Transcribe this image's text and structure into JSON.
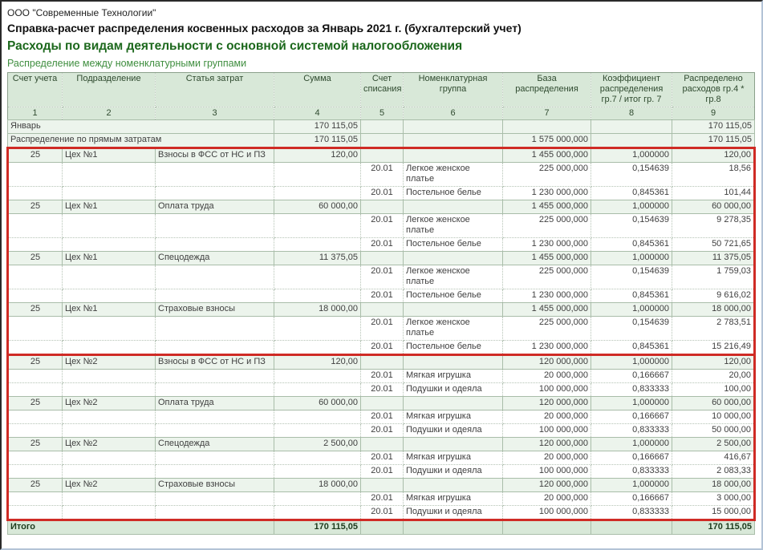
{
  "report": {
    "company": "ООО \"Современные Технологии\"",
    "title": "Справка-расчет распределения косвенных расходов за Январь 2021 г. (бухгалтерский учет)",
    "section_title": "Расходы по видам деятельности с основной системой налогообложения",
    "subsection_title": "Распределение между номенклатурными группами"
  },
  "colors": {
    "header_background": "#d8e8d8",
    "group_row_background": "#ecf4ec",
    "total_row_background": "#d8e8d8",
    "section_title_green": "#1c681c",
    "subsection_green": "#3f8e3f",
    "highlight_red": "#cf2b25"
  },
  "table": {
    "columns": [
      {
        "label": "Счет учета",
        "num": "1",
        "width": 68
      },
      {
        "label": "Подразделение",
        "num": "2",
        "width": 116
      },
      {
        "label": "Статья затрат",
        "num": "3",
        "width": 148
      },
      {
        "label": "Сумма",
        "num": "4",
        "width": 108
      },
      {
        "label": "Счет списания",
        "num": "5",
        "width": 53
      },
      {
        "label": "Номенклатурная группа",
        "num": "6",
        "width": 124
      },
      {
        "label": "База распределения",
        "num": "7",
        "width": 110
      },
      {
        "label": "Коэффициент распределения гр.7 / итог гр. 7",
        "num": "8",
        "width": 101
      },
      {
        "label": "Распределено расходов гр.4 * гр.8",
        "num": "9",
        "width": 103
      }
    ],
    "rows": [
      {
        "type": "month",
        "label": "Январь",
        "amount": "170 115,05",
        "base": "",
        "allocated": "170 115,05",
        "red": ""
      },
      {
        "type": "method",
        "label": "Распределение по прямым затратам",
        "amount": "170 115,05",
        "base": "1 575 000,000",
        "allocated": "170 115,05",
        "red": ""
      },
      {
        "type": "group",
        "account": "25",
        "department": "Цех №1",
        "cost_item": "Взносы в ФСС от НС и ПЗ",
        "amount": "120,00",
        "base": "1 455 000,000",
        "coefficient": "1,000000",
        "allocated": "120,00",
        "red": "first"
      },
      {
        "type": "detail",
        "write_off": "20.01",
        "group_name": "Легкое женское платье",
        "base": "225 000,000",
        "coefficient": "0,154639",
        "allocated": "18,56",
        "red": "mid"
      },
      {
        "type": "detail",
        "write_off": "20.01",
        "group_name": "Постельное белье",
        "base": "1 230 000,000",
        "coefficient": "0,845361",
        "allocated": "101,44",
        "red": "mid"
      },
      {
        "type": "group",
        "account": "25",
        "department": "Цех №1",
        "cost_item": "Оплата труда",
        "amount": "60 000,00",
        "base": "1 455 000,000",
        "coefficient": "1,000000",
        "allocated": "60 000,00",
        "red": "mid"
      },
      {
        "type": "detail",
        "write_off": "20.01",
        "group_name": "Легкое женское платье",
        "base": "225 000,000",
        "coefficient": "0,154639",
        "allocated": "9 278,35",
        "red": "mid"
      },
      {
        "type": "detail",
        "write_off": "20.01",
        "group_name": "Постельное белье",
        "base": "1 230 000,000",
        "coefficient": "0,845361",
        "allocated": "50 721,65",
        "red": "mid"
      },
      {
        "type": "group",
        "account": "25",
        "department": "Цех №1",
        "cost_item": "Спецодежда",
        "amount": "11 375,05",
        "base": "1 455 000,000",
        "coefficient": "1,000000",
        "allocated": "11 375,05",
        "red": "mid"
      },
      {
        "type": "detail",
        "write_off": "20.01",
        "group_name": "Легкое женское платье",
        "base": "225 000,000",
        "coefficient": "0,154639",
        "allocated": "1 759,03",
        "red": "mid"
      },
      {
        "type": "detail",
        "write_off": "20.01",
        "group_name": "Постельное белье",
        "base": "1 230 000,000",
        "coefficient": "0,845361",
        "allocated": "9 616,02",
        "red": "mid"
      },
      {
        "type": "group",
        "account": "25",
        "department": "Цех №1",
        "cost_item": "Страховые взносы",
        "amount": "18 000,00",
        "base": "1 455 000,000",
        "coefficient": "1,000000",
        "allocated": "18 000,00",
        "red": "mid"
      },
      {
        "type": "detail",
        "write_off": "20.01",
        "group_name": "Легкое женское платье",
        "base": "225 000,000",
        "coefficient": "0,154639",
        "allocated": "2 783,51",
        "red": "mid"
      },
      {
        "type": "detail",
        "write_off": "20.01",
        "group_name": "Постельное белье",
        "base": "1 230 000,000",
        "coefficient": "0,845361",
        "allocated": "15 216,49",
        "red": "last"
      },
      {
        "type": "group",
        "account": "25",
        "department": "Цех №2",
        "cost_item": "Взносы в ФСС от НС и ПЗ",
        "amount": "120,00",
        "base": "120 000,000",
        "coefficient": "1,000000",
        "allocated": "120,00",
        "red": "first"
      },
      {
        "type": "detail",
        "write_off": "20.01",
        "group_name": "Мягкая игрушка",
        "base": "20 000,000",
        "coefficient": "0,166667",
        "allocated": "20,00",
        "red": "mid"
      },
      {
        "type": "detail",
        "write_off": "20.01",
        "group_name": "Подушки и одеяла",
        "base": "100 000,000",
        "coefficient": "0,833333",
        "allocated": "100,00",
        "red": "mid"
      },
      {
        "type": "group",
        "account": "25",
        "department": "Цех №2",
        "cost_item": "Оплата труда",
        "amount": "60 000,00",
        "base": "120 000,000",
        "coefficient": "1,000000",
        "allocated": "60 000,00",
        "red": "mid"
      },
      {
        "type": "detail",
        "write_off": "20.01",
        "group_name": "Мягкая игрушка",
        "base": "20 000,000",
        "coefficient": "0,166667",
        "allocated": "10 000,00",
        "red": "mid"
      },
      {
        "type": "detail",
        "write_off": "20.01",
        "group_name": "Подушки и одеяла",
        "base": "100 000,000",
        "coefficient": "0,833333",
        "allocated": "50 000,00",
        "red": "mid"
      },
      {
        "type": "group",
        "account": "25",
        "department": "Цех №2",
        "cost_item": "Спецодежда",
        "amount": "2 500,00",
        "base": "120 000,000",
        "coefficient": "1,000000",
        "allocated": "2 500,00",
        "red": "mid"
      },
      {
        "type": "detail",
        "write_off": "20.01",
        "group_name": "Мягкая игрушка",
        "base": "20 000,000",
        "coefficient": "0,166667",
        "allocated": "416,67",
        "red": "mid"
      },
      {
        "type": "detail",
        "write_off": "20.01",
        "group_name": "Подушки и одеяла",
        "base": "100 000,000",
        "coefficient": "0,833333",
        "allocated": "2 083,33",
        "red": "mid"
      },
      {
        "type": "group",
        "account": "25",
        "department": "Цех №2",
        "cost_item": "Страховые взносы",
        "amount": "18 000,00",
        "base": "120 000,000",
        "coefficient": "1,000000",
        "allocated": "18 000,00",
        "red": "mid"
      },
      {
        "type": "detail",
        "write_off": "20.01",
        "group_name": "Мягкая игрушка",
        "base": "20 000,000",
        "coefficient": "0,166667",
        "allocated": "3 000,00",
        "red": "mid"
      },
      {
        "type": "detail",
        "write_off": "20.01",
        "group_name": "Подушки и одеяла",
        "base": "100 000,000",
        "coefficient": "0,833333",
        "allocated": "15 000,00",
        "red": "last"
      },
      {
        "type": "total",
        "label": "Итого",
        "amount": "170 115,05",
        "base": "",
        "allocated": "170 115,05",
        "red": ""
      }
    ]
  }
}
